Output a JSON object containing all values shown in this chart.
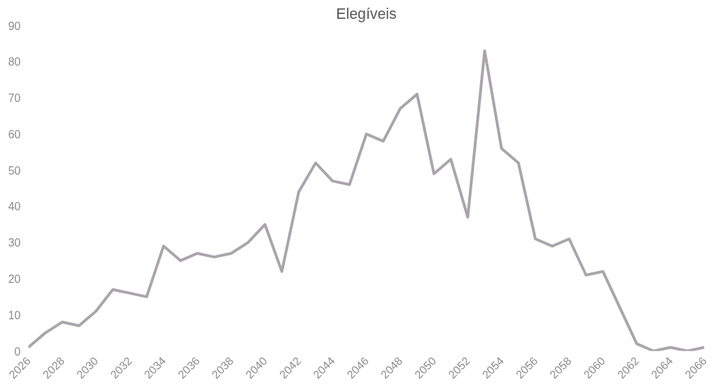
{
  "chart_data": {
    "type": "line",
    "title": "Elegíveis",
    "x": [
      2026,
      2027,
      2028,
      2029,
      2030,
      2031,
      2032,
      2033,
      2034,
      2035,
      2036,
      2037,
      2038,
      2039,
      2040,
      2041,
      2042,
      2043,
      2044,
      2045,
      2046,
      2047,
      2048,
      2049,
      2050,
      2051,
      2052,
      2053,
      2054,
      2055,
      2056,
      2057,
      2058,
      2059,
      2060,
      2061,
      2062,
      2063,
      2064,
      2065,
      2066
    ],
    "series": [
      {
        "color": "#a9a5aa",
        "values": [
          1,
          5,
          8,
          7,
          11,
          17,
          16,
          15,
          29,
          25,
          27,
          26,
          27,
          30,
          35,
          22,
          44,
          52,
          47,
          46,
          60,
          58,
          67,
          71,
          49,
          53,
          37,
          83,
          56,
          52,
          31,
          29,
          31,
          21,
          22,
          12,
          2,
          0,
          1,
          0,
          1
        ]
      }
    ],
    "xlim": [
      2026,
      2066
    ],
    "xticks": [
      2026,
      2028,
      2030,
      2032,
      2034,
      2036,
      2038,
      2040,
      2042,
      2044,
      2046,
      2048,
      2050,
      2052,
      2054,
      2056,
      2058,
      2060,
      2062,
      2064,
      2066
    ],
    "ylim": [
      0,
      90
    ],
    "yticks": [
      0,
      10,
      20,
      30,
      40,
      50,
      60,
      70,
      80,
      90
    ],
    "grid": false,
    "marker": "none",
    "line_style": "solid"
  }
}
